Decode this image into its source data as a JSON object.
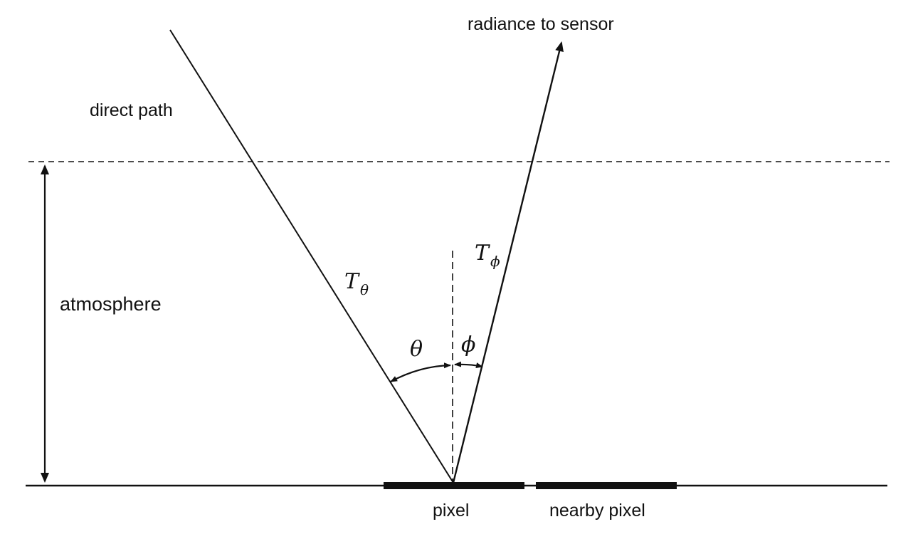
{
  "labels": {
    "direct_path": "direct path",
    "radiance_to_sensor": "radiance to sensor",
    "atmosphere": "atmosphere",
    "pixel": "pixel",
    "nearby_pixel": "nearby pixel"
  },
  "symbols": {
    "t_theta_base": "T",
    "t_theta_sub": "θ",
    "t_phi_base": "T",
    "t_phi_sub": "ϕ",
    "theta": "θ",
    "phi": "ϕ"
  },
  "colors": {
    "ink": "#111111",
    "background": "#ffffff"
  }
}
